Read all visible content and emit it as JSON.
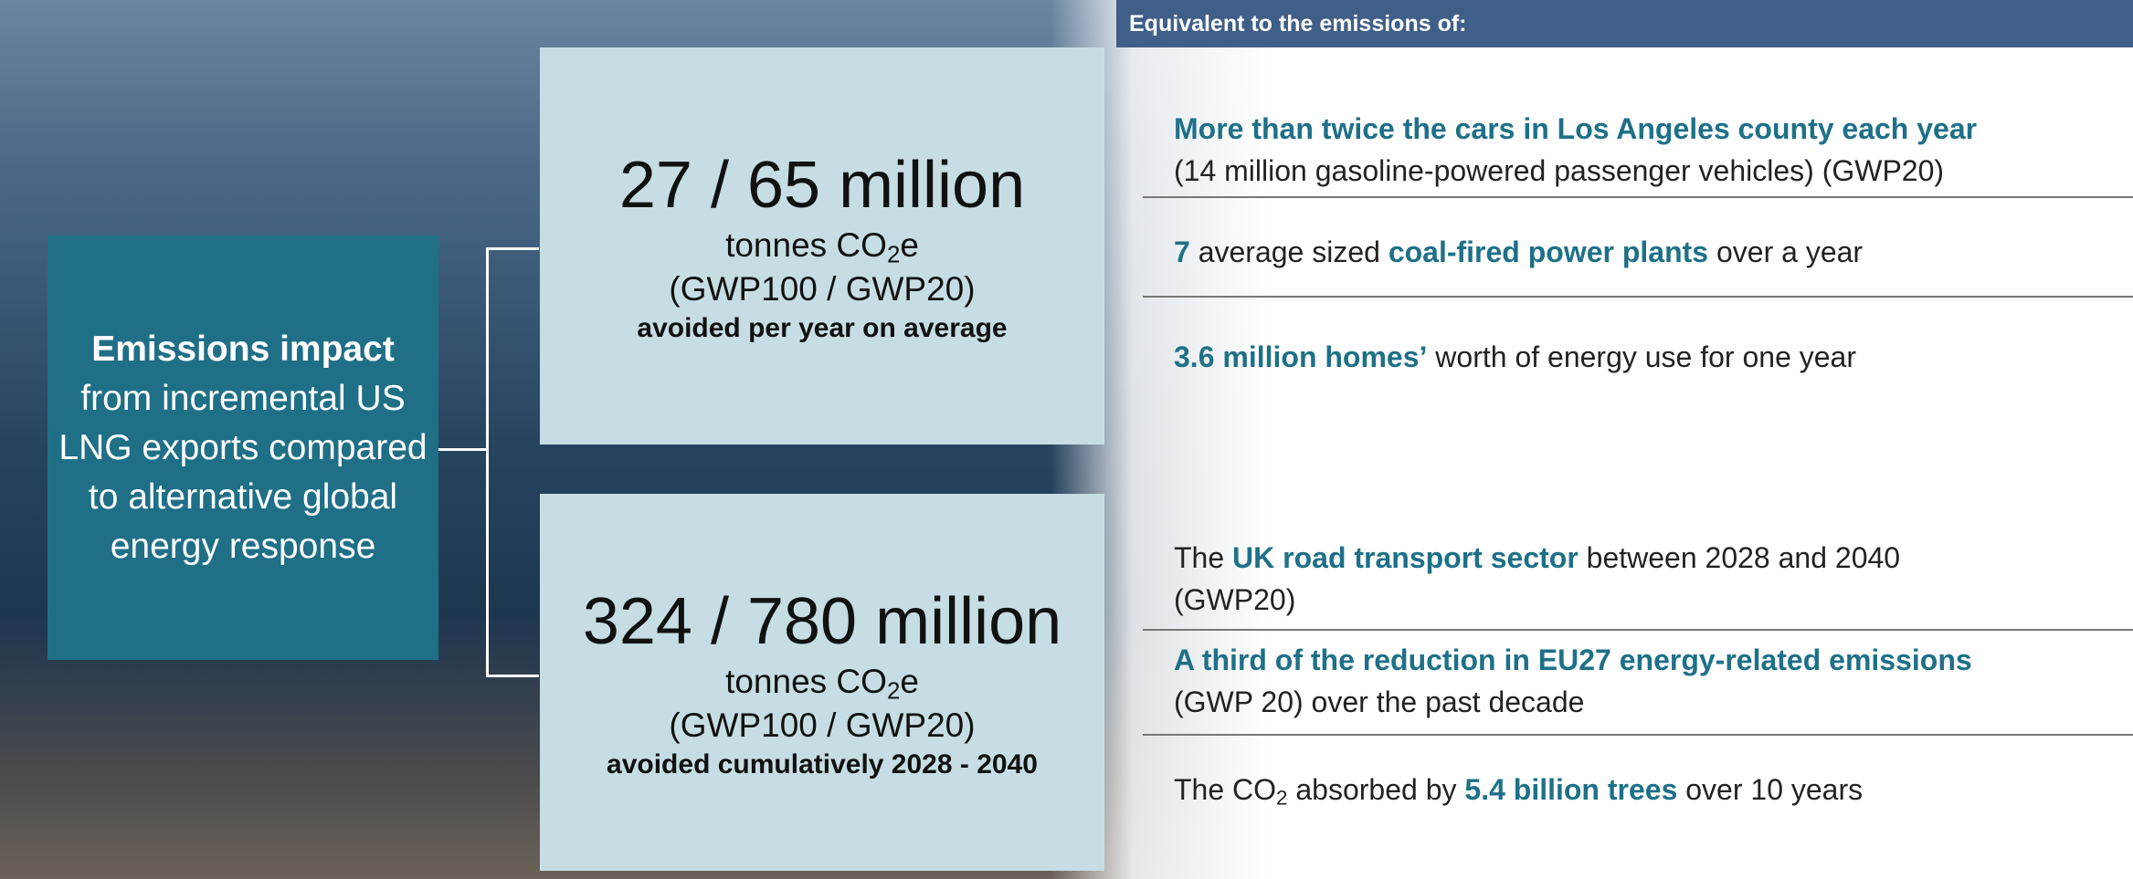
{
  "header": "Equivalent to the emissions of:",
  "impact": {
    "heading": "Emissions impact",
    "text": "from incremental US LNG exports compared to alternative global energy response"
  },
  "annual": {
    "figure": "27 / 65 million",
    "unit": [
      {
        "text": "tonnes CO"
      },
      {
        "text": "2",
        "style": "sub"
      },
      {
        "text": "e"
      }
    ],
    "metric": "(GWP100 / GWP20)",
    "note": "avoided per year on average",
    "equivalents": [
      {
        "lines": [
          [
            {
              "text": "More than twice the cars in Los Angeles county each year",
              "style": "bold"
            }
          ],
          [
            {
              "text": "(14 million gasoline-powered passenger vehicles) (GWP20)"
            }
          ]
        ]
      },
      {
        "lines": [
          [
            {
              "text": "7",
              "style": "bold"
            },
            {
              "text": " average sized "
            },
            {
              "text": "coal-fired power plants",
              "style": "bold"
            },
            {
              "text": " over a year"
            }
          ]
        ]
      },
      {
        "lines": [
          [
            {
              "text": "3.6 million homes’",
              "style": "bold"
            },
            {
              "text": " worth of energy use for one year"
            }
          ]
        ]
      }
    ]
  },
  "cumulative": {
    "figure": "324 / 780 million",
    "unit": [
      {
        "text": "tonnes CO"
      },
      {
        "text": "2",
        "style": "sub"
      },
      {
        "text": "e"
      }
    ],
    "metric": "(GWP100 / GWP20)",
    "note": "avoided cumulatively 2028 - 2040",
    "equivalents": [
      {
        "lines": [
          [
            {
              "text": "The "
            },
            {
              "text": "UK road transport sector",
              "style": "bold"
            },
            {
              "text": " between 2028 and 2040"
            }
          ],
          [
            {
              "text": "(GWP20)"
            }
          ]
        ]
      },
      {
        "lines": [
          [
            {
              "text": "A third of the reduction in EU27 energy-related emissions",
              "style": "bold"
            }
          ],
          [
            {
              "text": "(GWP 20) over the past decade"
            }
          ]
        ]
      },
      {
        "lines": [
          [
            {
              "text": "The CO"
            },
            {
              "text": "2",
              "style": "sub"
            },
            {
              "text": " absorbed by "
            },
            {
              "text": "5.4 billion trees",
              "style": "bold"
            },
            {
              "text": " over 10 years"
            }
          ]
        ]
      }
    ]
  }
}
